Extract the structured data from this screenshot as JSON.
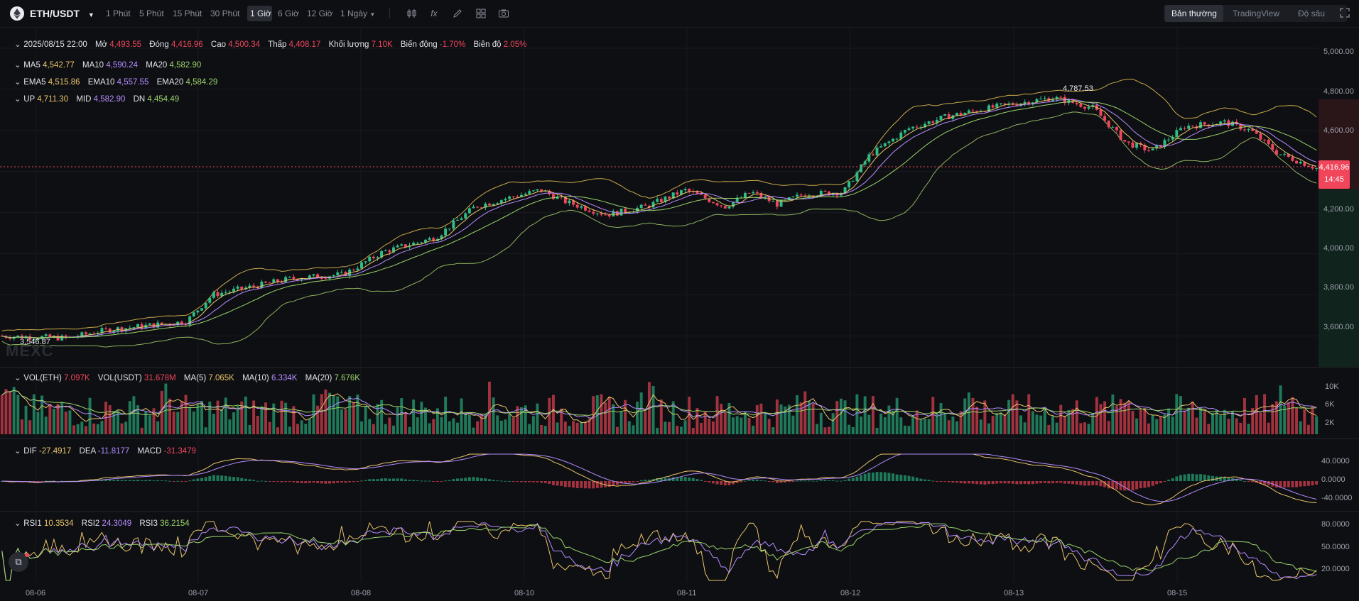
{
  "toolbar": {
    "symbol": "ETH/USDT",
    "intervals": [
      "1 Phút",
      "5 Phút",
      "15 Phút",
      "30 Phút",
      "1 Giờ",
      "6 Giờ",
      "12 Giờ",
      "1 Ngày"
    ],
    "active_interval": "1 Giờ",
    "views": [
      "Bản thường",
      "TradingView",
      "Độ sâu"
    ],
    "active_view": "Bản thường",
    "icons": [
      "candle-type-icon",
      "indicator-fx-icon",
      "draw-pen-icon",
      "layout-grid-icon",
      "camera-icon",
      "fullscreen-icon"
    ]
  },
  "ohlc": {
    "date": "2025/08/15 22:00",
    "open_label": "Mở",
    "open": "4,493.55",
    "close_label": "Đóng",
    "close": "4,416.96",
    "high_label": "Cao",
    "high": "4,500.34",
    "low_label": "Thấp",
    "low": "4,408.17",
    "volume_label": "Khối lượng",
    "volume": "7.10K",
    "change_label": "Biến động",
    "change": "-1.70%",
    "amplitude_label": "Biên độ",
    "amplitude": "2.05%"
  },
  "ma": {
    "ma5_label": "MA5",
    "ma5": "4,542.77",
    "ma10_label": "MA10",
    "ma10": "4,590.24",
    "ma20_label": "MA20",
    "ma20": "4,582.90"
  },
  "ema": {
    "ema5_label": "EMA5",
    "ema5": "4,515.86",
    "ema10_label": "EMA10",
    "ema10": "4,557.55",
    "ema20_label": "EMA20",
    "ema20": "4,584.29"
  },
  "boll": {
    "up_label": "UP",
    "up": "4,711.30",
    "mid_label": "MID",
    "mid": "4,582.90",
    "dn_label": "DN",
    "dn": "4,454.49"
  },
  "vol": {
    "eth_label": "VOL(ETH)",
    "eth": "7.097K",
    "usdt_label": "VOL(USDT)",
    "usdt": "31.678M",
    "ma5_label": "MA(5)",
    "ma5": "7.065K",
    "ma10_label": "MA(10)",
    "ma10": "6.334K",
    "ma20_label": "MA(20)",
    "ma20": "7.676K"
  },
  "macd": {
    "dif_label": "DIF",
    "dif": "-27.4917",
    "dea_label": "DEA",
    "dea": "-11.8177",
    "macd_label": "MACD",
    "macd": "-31.3479"
  },
  "rsi": {
    "rsi1_label": "RSI1",
    "rsi1": "10.3534",
    "rsi2_label": "RSI2",
    "rsi2": "24.3049",
    "rsi3_label": "RSI3",
    "rsi3": "36.2154"
  },
  "price_axis": [
    "5,000.00",
    "4,800.00",
    "4,600.00",
    "4,200.00",
    "4,000.00",
    "3,800.00",
    "3,600.00"
  ],
  "volume_axis": [
    "10K",
    "6K",
    "2K"
  ],
  "macd_axis": [
    "40.0000",
    "0.0000",
    "-40.0000"
  ],
  "rsi_axis": [
    "80.0000",
    "50.0000",
    "20.0000"
  ],
  "time_axis": [
    "08-06",
    "08-07",
    "08-08",
    "08-10",
    "08-11",
    "08-12",
    "08-13",
    "08-15"
  ],
  "last_price": {
    "price": "4,416.96",
    "countdown": "14:45"
  },
  "annotations": {
    "high": "4,787.53",
    "low": "3,546.87"
  },
  "watermark": "MEXC",
  "colors": {
    "up": "#2ebd85",
    "down": "#f0455b",
    "ma5": "#e9c46a",
    "ma10": "#b48cff",
    "ma20": "#9bd36a",
    "bg": "#0e0f13"
  },
  "chart_data": {
    "type": "candlestick",
    "symbol": "ETH/USDT",
    "interval": "1h",
    "price_range": [
      3450,
      5100
    ],
    "anchor_points": [
      {
        "t": 0,
        "price": 3600
      },
      {
        "t": 0.05,
        "price": 3590
      },
      {
        "t": 0.08,
        "price": 3630
      },
      {
        "t": 0.14,
        "price": 3670
      },
      {
        "t": 0.16,
        "price": 3800
      },
      {
        "t": 0.22,
        "price": 3880
      },
      {
        "t": 0.26,
        "price": 3900
      },
      {
        "t": 0.29,
        "price": 4010
      },
      {
        "t": 0.33,
        "price": 4080
      },
      {
        "t": 0.36,
        "price": 4230
      },
      {
        "t": 0.39,
        "price": 4280
      },
      {
        "t": 0.41,
        "price": 4310
      },
      {
        "t": 0.43,
        "price": 4250
      },
      {
        "t": 0.46,
        "price": 4190
      },
      {
        "t": 0.49,
        "price": 4230
      },
      {
        "t": 0.52,
        "price": 4310
      },
      {
        "t": 0.55,
        "price": 4230
      },
      {
        "t": 0.57,
        "price": 4300
      },
      {
        "t": 0.59,
        "price": 4240
      },
      {
        "t": 0.61,
        "price": 4290
      },
      {
        "t": 0.64,
        "price": 4300
      },
      {
        "t": 0.66,
        "price": 4480
      },
      {
        "t": 0.69,
        "price": 4610
      },
      {
        "t": 0.72,
        "price": 4670
      },
      {
        "t": 0.76,
        "price": 4720
      },
      {
        "t": 0.8,
        "price": 4760
      },
      {
        "t": 0.83,
        "price": 4710
      },
      {
        "t": 0.855,
        "price": 4540
      },
      {
        "t": 0.875,
        "price": 4500
      },
      {
        "t": 0.9,
        "price": 4620
      },
      {
        "t": 0.93,
        "price": 4640
      },
      {
        "t": 0.95,
        "price": 4600
      },
      {
        "t": 0.97,
        "price": 4490
      },
      {
        "t": 1.0,
        "price": 4416.96
      }
    ],
    "high": 4787.53,
    "low": 3546.87,
    "last_close": 4416.96,
    "macd_range": [
      -60,
      60
    ],
    "rsi_range": [
      0,
      100
    ]
  }
}
